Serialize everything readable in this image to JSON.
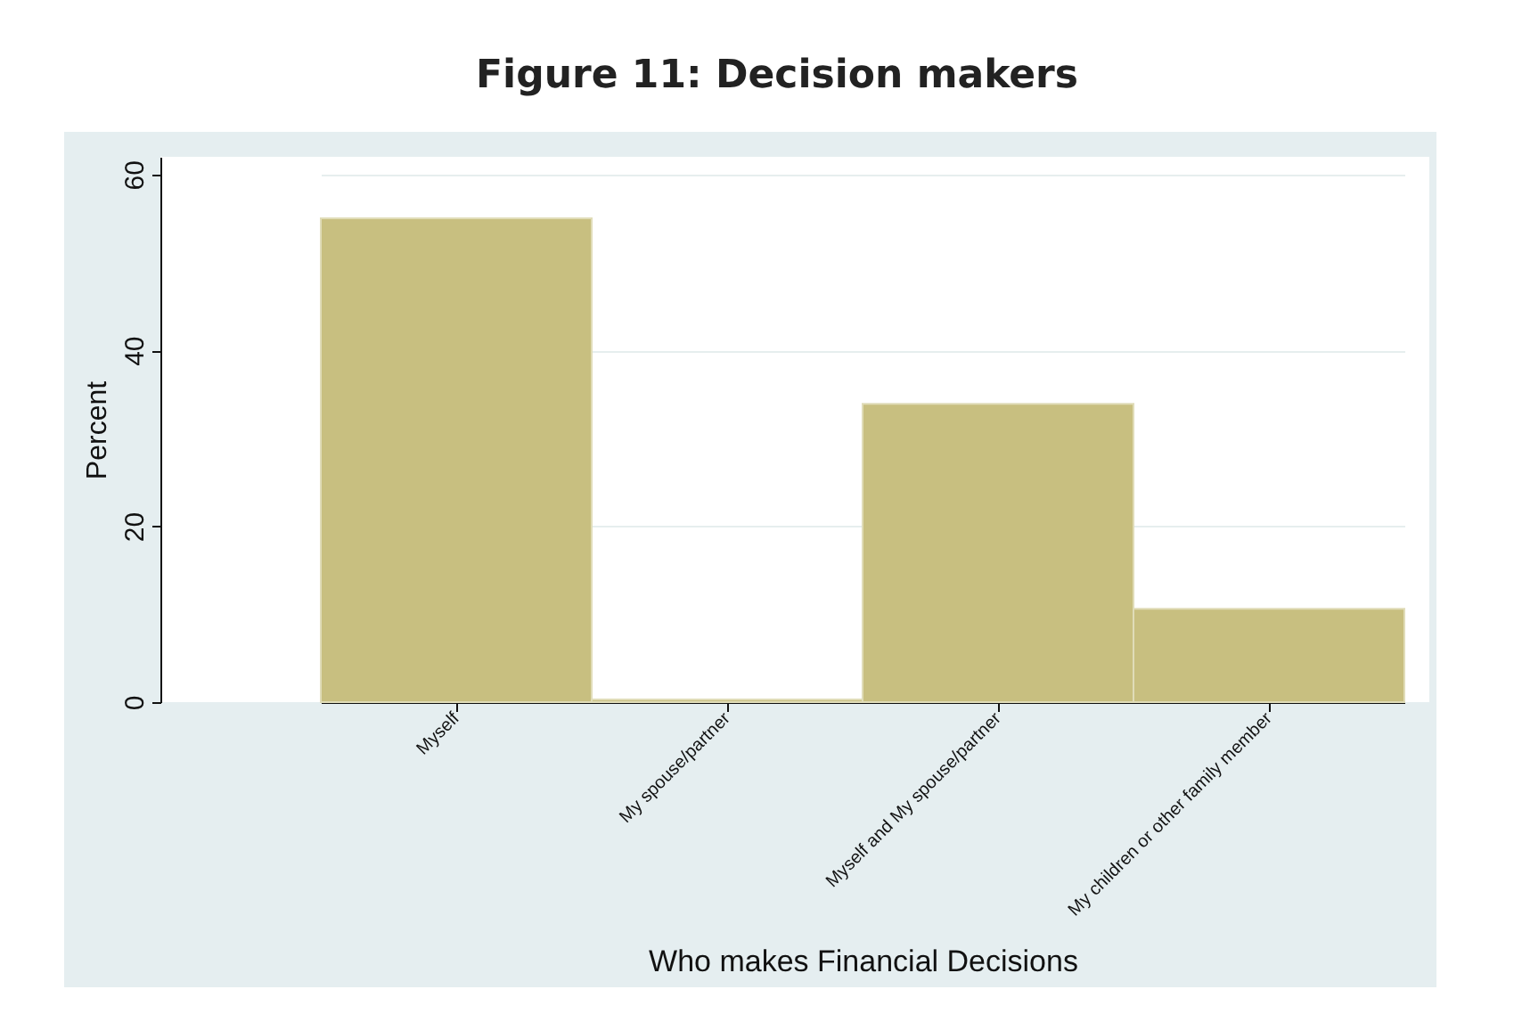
{
  "chart_data": {
    "type": "bar",
    "title": "Figure 11: Decision makers",
    "xlabel": "Who makes Financial Decisions",
    "ylabel": "Percent",
    "categories": [
      "Myself",
      "My spouse/partner",
      "Myself and My spouse/partner",
      "My children or other family member"
    ],
    "values": [
      55.0,
      0.3,
      33.9,
      10.6
    ],
    "color": "#c8bf80",
    "ylim": [
      0,
      62
    ],
    "yticks": [
      0,
      20,
      40,
      60
    ],
    "grid": "y"
  }
}
